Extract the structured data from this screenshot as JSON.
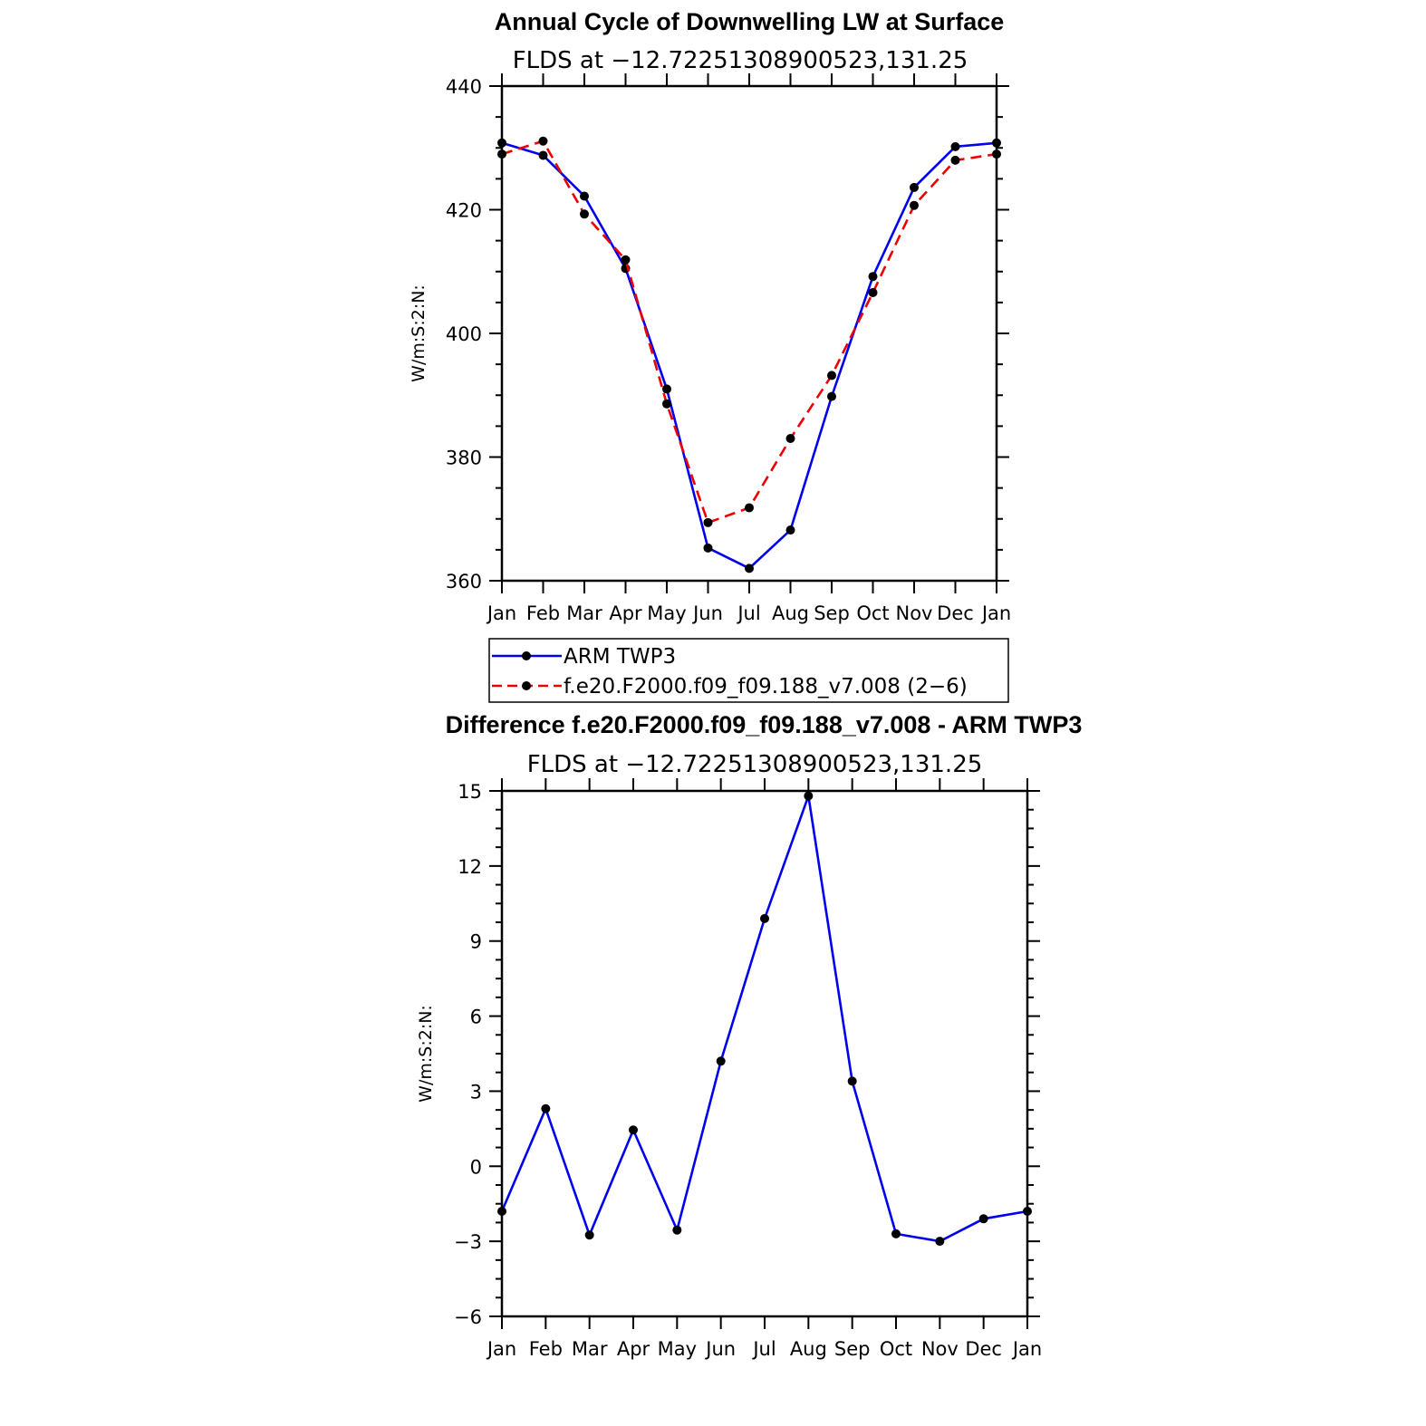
{
  "chart_data": [
    {
      "type": "line",
      "title": "Annual Cycle of Downwelling LW at Surface",
      "subtitle": "FLDS at −12.72251308900523,131.25",
      "ylabel": "W/m:S:2:N:",
      "xlabel": "",
      "categories": [
        "Jan",
        "Feb",
        "Mar",
        "Apr",
        "May",
        "Jun",
        "Jul",
        "Aug",
        "Sep",
        "Oct",
        "Nov",
        "Dec",
        "Jan"
      ],
      "ylim": [
        360,
        440
      ],
      "yticks": [
        "360",
        "380",
        "400",
        "420",
        "440"
      ],
      "series": [
        {
          "name": "ARM TWP3",
          "color": "#0000ee",
          "dash": "solid",
          "values": [
            430.8,
            428.8,
            422.2,
            410.5,
            391.0,
            365.3,
            362.0,
            368.2,
            389.8,
            409.2,
            423.6,
            430.2,
            430.8
          ]
        },
        {
          "name": "f.e20.F2000.f09_f09.188_v7.008 (2−6)",
          "color": "#ee0000",
          "dash": "dashed",
          "values": [
            429.0,
            431.1,
            419.3,
            411.9,
            388.6,
            369.4,
            371.8,
            383.0,
            393.2,
            406.6,
            420.7,
            428.0,
            429.0
          ]
        }
      ],
      "legend_position": "below"
    },
    {
      "type": "line",
      "title": "Difference f.e20.F2000.f09_f09.188_v7.008 - ARM TWP3",
      "subtitle": "FLDS at −12.72251308900523,131.25",
      "ylabel": "W/m:S:2:N:",
      "xlabel": "",
      "categories": [
        "Jan",
        "Feb",
        "Mar",
        "Apr",
        "May",
        "Jun",
        "Jul",
        "Aug",
        "Sep",
        "Oct",
        "Nov",
        "Dec",
        "Jan"
      ],
      "ylim": [
        -6,
        15
      ],
      "yticks": [
        "−6",
        "−3",
        "0",
        "3",
        "6",
        "9",
        "12",
        "15"
      ],
      "series": [
        {
          "color": "#0000ee",
          "dash": "solid",
          "values": [
            -1.8,
            2.3,
            -2.75,
            1.45,
            -2.55,
            4.2,
            9.9,
            14.8,
            3.4,
            -2.7,
            -3.0,
            -2.1,
            -1.8
          ]
        }
      ]
    }
  ]
}
